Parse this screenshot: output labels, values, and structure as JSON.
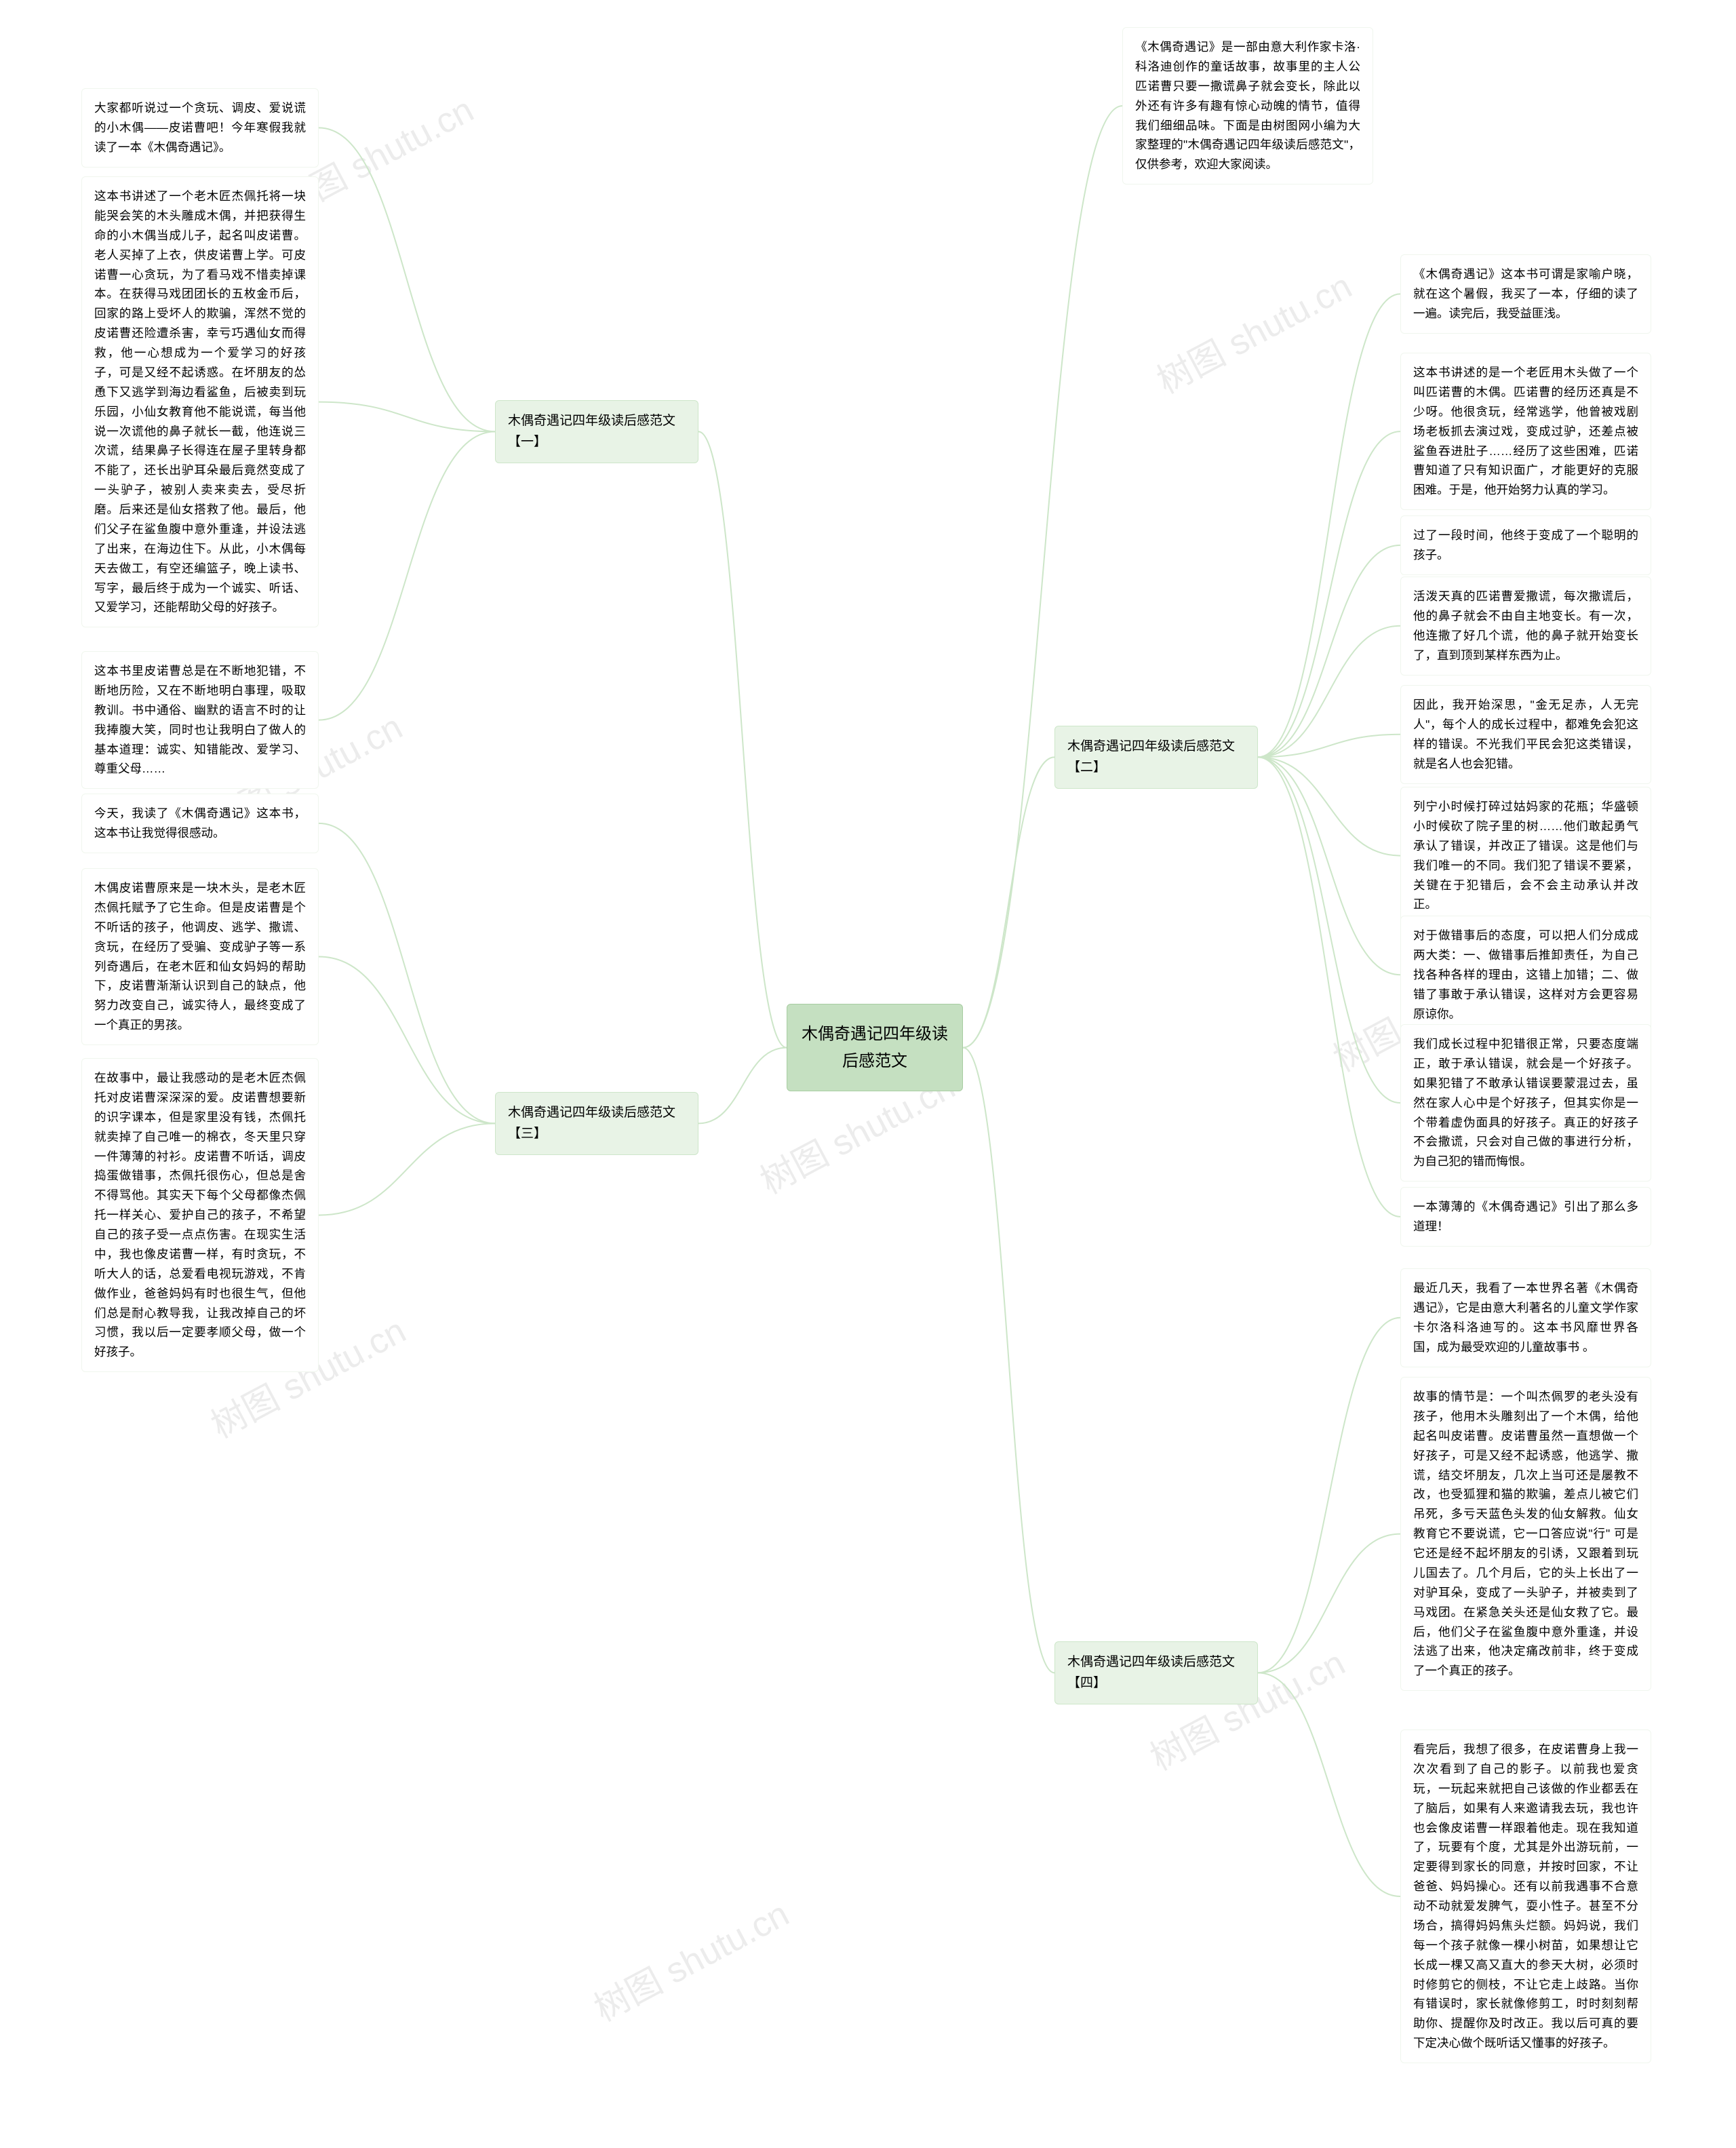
{
  "colors": {
    "root_bg": "#c5e0c1",
    "root_border": "#a8cda2",
    "section_bg": "#e8f3e6",
    "section_border": "#cde6c9",
    "leaf_bg": "#ffffff",
    "leaf_border": "#f0f6ee",
    "connector": "#cde6c9",
    "watermark_color": "#ececec"
  },
  "watermark_text": "树图 shutu.cn",
  "root": {
    "title": "木偶奇遇记四年级读后感范文"
  },
  "intro": {
    "text": "《木偶奇遇记》是一部由意大利作家卡洛·科洛迪创作的童话故事，故事里的主人公匹诺曹只要一撒谎鼻子就会变长，除此以外还有许多有趣有惊心动魄的情节，值得我们细细品味。下面是由树图网小编为大家整理的\"木偶奇遇记四年级读后感范文\"，仅供参考，欢迎大家阅读。"
  },
  "sections": [
    {
      "title": "木偶奇遇记四年级读后感范文【一】",
      "side": "left",
      "leaves": [
        "大家都听说过一个贪玩、调皮、爱说谎的小木偶——皮诺曹吧！今年寒假我就读了一本《木偶奇遇记》。",
        "这本书讲述了一个老木匠杰佩托将一块能哭会笑的木头雕成木偶，并把获得生命的小木偶当成儿子，起名叫皮诺曹。老人买掉了上衣，供皮诺曹上学。可皮诺曹一心贪玩，为了看马戏不惜卖掉课本。在获得马戏团团长的五枚金币后，回家的路上受坏人的欺骗，浑然不觉的皮诺曹还险遭杀害，幸亏巧遇仙女而得救，他一心想成为一个爱学习的好孩子，可是又经不起诱惑。在坏朋友的怂恿下又逃学到海边看鲨鱼，后被卖到玩乐园，小仙女教育他不能说谎，每当他说一次谎他的鼻子就长一截，他连说三次谎，结果鼻子长得连在屋子里转身都不能了，还长出驴耳朵最后竟然变成了一头驴子，被别人卖来卖去，受尽折磨。后来还是仙女搭救了他。最后，他们父子在鲨鱼腹中意外重逢，并设法逃了出来，在海边住下。从此，小木偶每天去做工，有空还编篮子，晚上读书、写字，最后终于成为一个诚实、听话、又爱学习，还能帮助父母的好孩子。",
        "这本书里皮诺曹总是在不断地犯错，不断地历险，又在不断地明白事理，吸取教训。书中通俗、幽默的语言不时的让我捧腹大笑，同时也让我明白了做人的基本道理：诚实、知错能改、爱学习、尊重父母……"
      ]
    },
    {
      "title": "木偶奇遇记四年级读后感范文【二】",
      "side": "right",
      "leaves": [
        "《木偶奇遇记》这本书可谓是家喻户晓，就在这个暑假，我买了一本，仔细的读了一遍。读完后，我受益匪浅。",
        "这本书讲述的是一个老匠用木头做了一个叫匹诺曹的木偶。匹诺曹的经历还真是不少呀。他很贪玩，经常逃学，他曾被戏剧场老板抓去演过戏，变成过驴，还差点被鲨鱼吞进肚子……经历了这些困难，匹诺曹知道了只有知识面广，才能更好的克服困难。于是，他开始努力认真的学习。",
        "过了一段时间，他终于变成了一个聪明的孩子。",
        "活泼天真的匹诺曹爱撒谎，每次撒谎后，他的鼻子就会不由自主地变长。有一次，他连撒了好几个谎，他的鼻子就开始变长了，直到顶到某样东西为止。",
        "因此，我开始深思，\"金无足赤，人无完人\"，每个人的成长过程中，都难免会犯这样的错误。不光我们平民会犯这类错误，就是名人也会犯错。",
        "列宁小时候打碎过姑妈家的花瓶；华盛顿小时候砍了院子里的树……他们敢起勇气承认了错误，并改正了错误。这是他们与我们唯一的不同。我们犯了错误不要紧，关键在于犯错后，会不会主动承认并改正。",
        "对于做错事后的态度，可以把人们分成成两大类：一、做错事后推卸责任，为自己找各种各样的理由，这错上加错；二、做错了事敢于承认错误，这样对方会更容易原谅你。",
        "我们成长过程中犯错很正常，只要态度端正，敢于承认错误，就会是一个好孩子。如果犯错了不敢承认错误要蒙混过去，虽然在家人心中是个好孩子，但其实你是一个带着虚伪面具的好孩子。真正的好孩子不会撒谎，只会对自己做的事进行分析，为自己犯的错而悔恨。",
        "一本薄薄的《木偶奇遇记》引出了那么多道理！"
      ]
    },
    {
      "title": "木偶奇遇记四年级读后感范文【三】",
      "side": "left",
      "leaves": [
        "今天，我读了《木偶奇遇记》这本书，这本书让我觉得很感动。",
        "木偶皮诺曹原来是一块木头，是老木匠杰佩托赋予了它生命。但是皮诺曹是个不听话的孩子，他调皮、逃学、撒谎、贪玩，在经历了受骗、变成驴子等一系列奇遇后，在老木匠和仙女妈妈的帮助下，皮诺曹渐渐认识到自己的缺点，他努力改变自己，诚实待人，最终变成了一个真正的男孩。",
        "在故事中，最让我感动的是老木匠杰佩托对皮诺曹深深深的爱。皮诺曹想要新的识字课本，但是家里没有钱，杰佩托就卖掉了自己唯一的棉衣，冬天里只穿一件薄薄的衬衫。皮诺曹不听话，调皮捣蛋做错事，杰佩托很伤心，但总是舍不得骂他。其实天下每个父母都像杰佩托一样关心、爱护自己的孩子，不希望自己的孩子受一点点伤害。在现实生活中，我也像皮诺曹一样，有时贪玩，不听大人的话，总爱看电视玩游戏，不肯做作业，爸爸妈妈有时也很生气，但他们总是耐心教导我，让我改掉自己的坏习惯，我以后一定要孝顺父母，做一个好孩子。"
      ]
    },
    {
      "title": "木偶奇遇记四年级读后感范文【四】",
      "side": "right",
      "leaves": [
        "最近几天，我看了一本世界名著《木偶奇遇记》，它是由意大利著名的儿童文学作家卡尔洛科洛迪写的。这本书风靡世界各国，成为最受欢迎的儿童故事书 。",
        "故事的情节是：一个叫杰佩罗的老头没有孩子，他用木头雕刻出了一个木偶，给他起名叫皮诺曹。皮诺曹虽然一直想做一个好孩子，可是又经不起诱惑，他逃学、撒谎，结交坏朋友，几次上当可还是屡教不改，也受狐狸和猫的欺骗，差点儿被它们吊死，多亏天蓝色头发的仙女解救。仙女教育它不要说谎，它一口答应说\"行\" 可是它还是经不起坏朋友的引诱，又跟着到玩儿国去了。几个月后，它的头上长出了一对驴耳朵，变成了一头驴子，并被卖到了马戏团。在紧急关头还是仙女救了它。最后，他们父子在鲨鱼腹中意外重逢，并设法逃了出来，他决定痛改前非，终于变成了一个真正的孩子。",
        "看完后，我想了很多，在皮诺曹身上我一次次看到了自己的影子。以前我也爱贪玩，一玩起来就把自己该做的作业都丢在了脑后，如果有人来邀请我去玩，我也许也会像皮诺曹一样跟着他走。现在我知道了，玩要有个度，尤其是外出游玩前，一定要得到家长的同意，并按时回家，不让爸爸、妈妈操心。还有以前我遇事不合意动不动就爱发脾气，耍小性子。甚至不分场合，搞得妈妈焦头烂额。妈妈说，我们每一个孩子就像一棵小树苗，如果想让它长成一棵又高又直大的参天大树，必须时时修剪它的侧枝，不让它走上歧路。当你有错误时，家长就像修剪工，时时刻刻帮助你、提醒你及时改正。我以后可真的要下定决心做个既听话又懂事的好孩子。"
      ]
    }
  ]
}
